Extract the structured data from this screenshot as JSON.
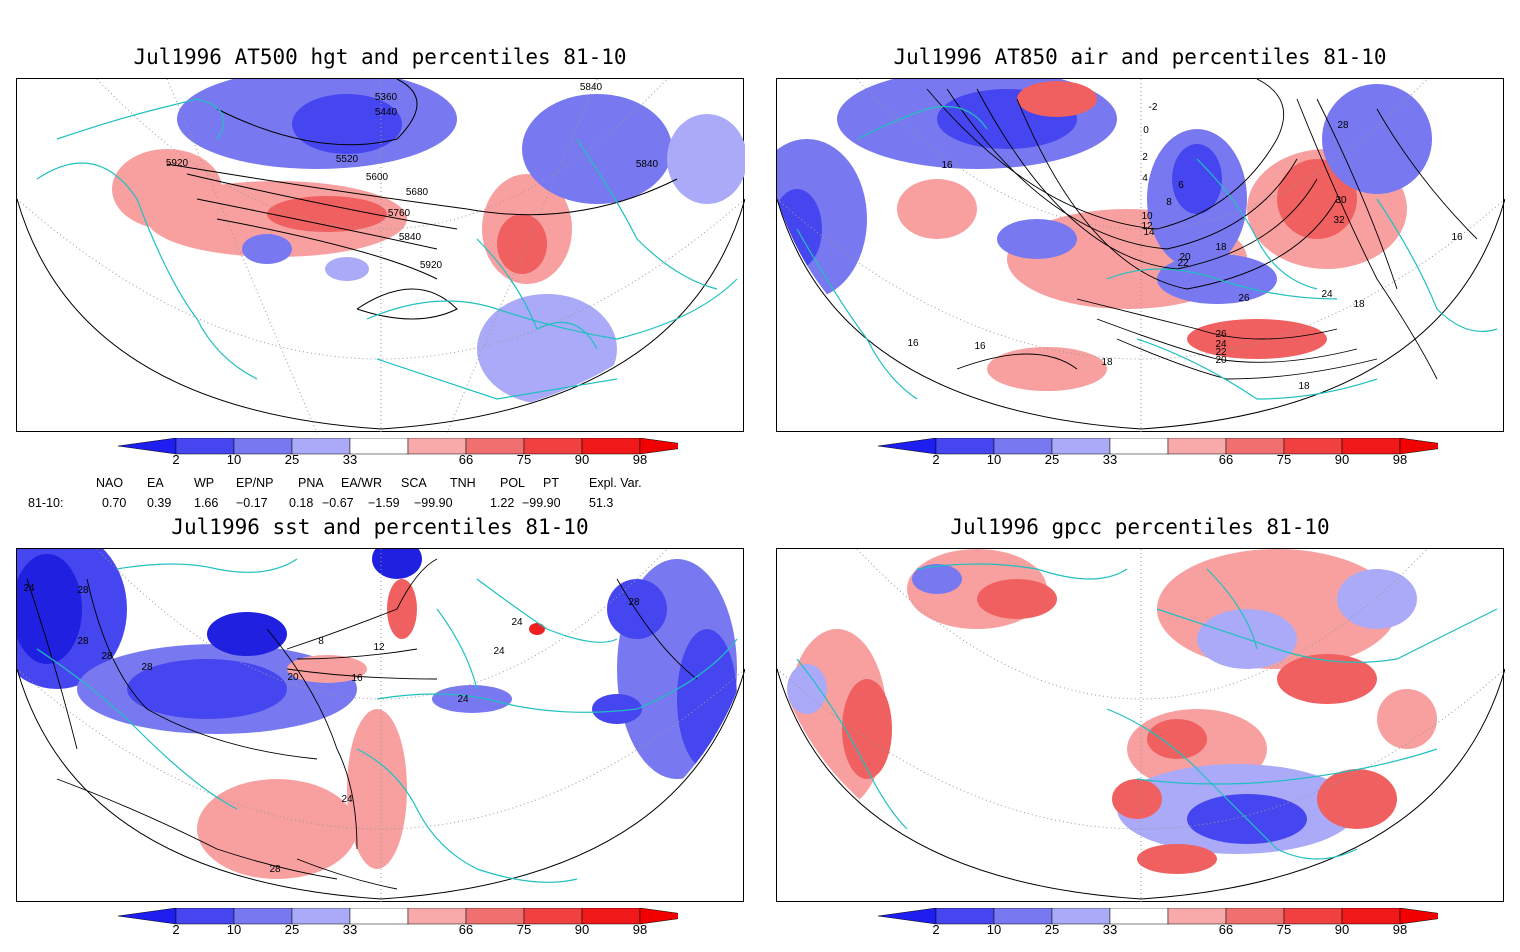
{
  "panels": [
    {
      "id": "p1",
      "title": "Jul1996 AT500 hgt and percentiles 81-10",
      "contour_labels": [
        "5360",
        "5440",
        "5520",
        "5600",
        "5680",
        "5760",
        "5840",
        "5920",
        "5840",
        "5840",
        "5920"
      ]
    },
    {
      "id": "p2",
      "title": "Jul1996 AT850 air and percentiles 81-10",
      "contour_labels": [
        "-2",
        "0",
        "2",
        "4",
        "6",
        "8",
        "10",
        "12",
        "14",
        "16",
        "18",
        "20",
        "22",
        "24",
        "26",
        "28",
        "30",
        "32",
        "16",
        "18",
        "16",
        "16",
        "18",
        "18",
        "20",
        "22",
        "24",
        "26"
      ]
    },
    {
      "id": "p3",
      "title": "Jul1996 sst and percentiles 81-10",
      "contour_labels": [
        "24",
        "28",
        "28",
        "28",
        "28",
        "8",
        "12",
        "16",
        "20",
        "24",
        "24",
        "24",
        "28",
        "28",
        "24"
      ]
    },
    {
      "id": "p4",
      "title": "Jul1996 gpcc percentiles 81-10",
      "contour_labels": []
    }
  ],
  "colorbar": {
    "labels": [
      "2",
      "10",
      "25",
      "33",
      "66",
      "75",
      "90",
      "98"
    ],
    "colors": [
      "#1e1ef0",
      "#4646f0",
      "#7878f0",
      "#aaaaf8",
      "#ffffff",
      "#f8aaaa",
      "#f07070",
      "#f04040",
      "#f01818",
      "#f00000"
    ]
  },
  "teleconnections": {
    "headers": [
      "NAO",
      "EA",
      "WP",
      "EP/NP",
      "PNA",
      "EA/WR",
      "SCA",
      "TNH",
      "POL",
      "PT",
      "Expl. Var."
    ],
    "row_label": "81-10:",
    "values": [
      "0.70",
      "0.39",
      "1.66",
      "−0.17",
      "0.18",
      "−0.67",
      "−1.59",
      "−99.90",
      "1.22",
      "−99.90",
      "51.3"
    ]
  },
  "colors": {
    "coast": "#20c0c0",
    "blue_light": "#aaaaf8",
    "blue_mid": "#6060f0",
    "blue_dark": "#2020e0",
    "red_light": "#f8a0a0",
    "red_mid": "#f06060",
    "red_dark": "#f02020"
  }
}
